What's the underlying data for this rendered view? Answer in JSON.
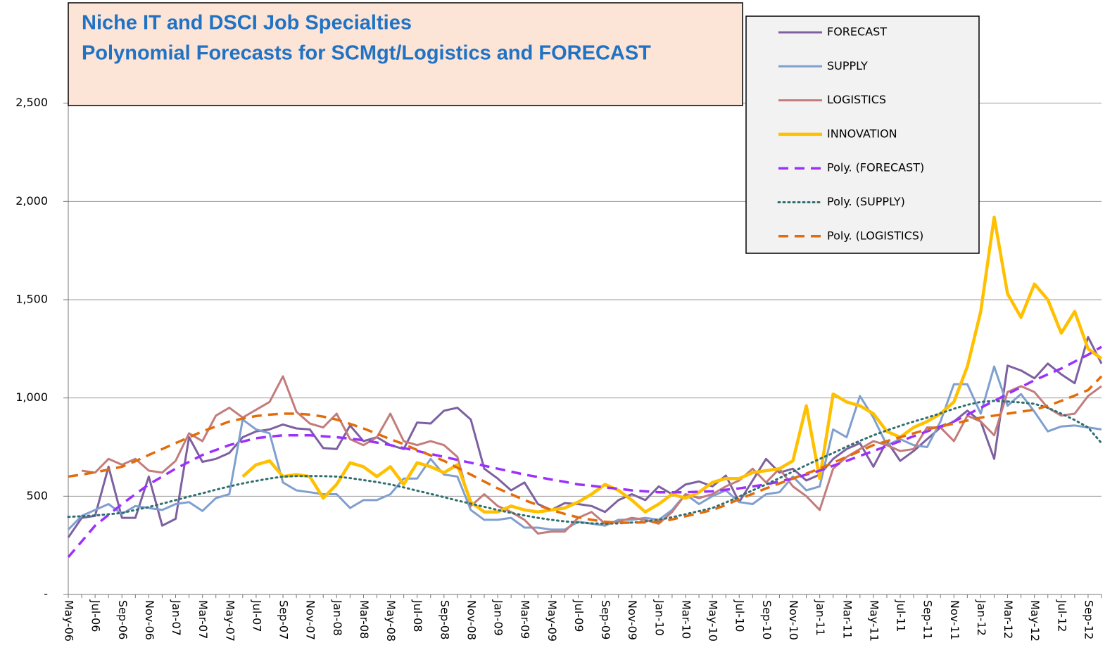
{
  "chart_data": {
    "type": "line",
    "title": "Niche IT and DSCI Job Specialties",
    "subtitle": "Polynomial Forecasts for SCMgt/Logistics and FORECAST",
    "categories": [
      "May-06",
      null,
      "Jul-06",
      null,
      "Sep-06",
      null,
      "Nov-06",
      null,
      "Jan-07",
      null,
      "Mar-07",
      null,
      "May-07",
      null,
      "Jul-07",
      null,
      "Sep-07",
      null,
      "Nov-07",
      null,
      "Jan-08",
      null,
      "Mar-08",
      null,
      "May-08",
      null,
      "Jul-08",
      null,
      "Sep-08",
      null,
      "Nov-08",
      null,
      "Jan-09",
      null,
      "Mar-09",
      null,
      "May-09",
      null,
      "Jul-09",
      null,
      "Sep-09",
      null,
      "Nov-09",
      null,
      "Jan-10",
      null,
      "Mar-10",
      null,
      "May-10",
      null,
      "Jul-10",
      null,
      "Sep-10",
      null,
      "Nov-10",
      null,
      "Jan-11",
      null,
      "Mar-11",
      null,
      "May-11",
      null,
      "Jul-11",
      null,
      "Sep-11",
      null,
      "Nov-11",
      null,
      "Jan-12",
      null,
      "Mar-12",
      null,
      "May-12",
      null,
      "Jul-12",
      null,
      "Sep-12",
      null
    ],
    "ylim": [
      0,
      3000
    ],
    "yticks": [
      {
        "value": 0,
        "label": "-"
      },
      500,
      {
        "value": 1000,
        "label": "1,000"
      },
      {
        "value": 1500,
        "label": "1,500"
      },
      {
        "value": 2000,
        "label": "2,000"
      },
      {
        "value": 2500,
        "label": "2,500"
      }
    ],
    "grid": true,
    "legend": "top-right",
    "series": [
      {
        "name": "FORECAST",
        "color": "#7d60a0",
        "style": "solid",
        "values": [
          290,
          390,
          400,
          650,
          390,
          390,
          600,
          350,
          385,
          800,
          675,
          690,
          720,
          800,
          830,
          840,
          865,
          845,
          840,
          745,
          740,
          860,
          780,
          800,
          760,
          740,
          875,
          870,
          935,
          950,
          890,
          640,
          590,
          530,
          570,
          460,
          430,
          465,
          460,
          450,
          420,
          480,
          510,
          480,
          550,
          510,
          560,
          575,
          550,
          605,
          470,
          580,
          690,
          620,
          640,
          580,
          610,
          690,
          740,
          770,
          650,
          780,
          680,
          730,
          790,
          850,
          880,
          935,
          880,
          690,
          1165,
          1140,
          1100,
          1175,
          1120,
          1075,
          1310,
          1175
        ]
      },
      {
        "name": "SUPPLY",
        "color": "#7f9fcf",
        "style": "solid",
        "values": [
          330,
          400,
          430,
          460,
          410,
          450,
          440,
          430,
          460,
          470,
          425,
          490,
          510,
          890,
          840,
          820,
          570,
          530,
          520,
          510,
          510,
          440,
          480,
          480,
          510,
          590,
          590,
          690,
          610,
          600,
          430,
          380,
          380,
          390,
          340,
          340,
          330,
          330,
          370,
          360,
          350,
          380,
          380,
          390,
          380,
          430,
          510,
          460,
          500,
          530,
          470,
          460,
          510,
          520,
          600,
          530,
          550,
          840,
          800,
          1010,
          900,
          760,
          790,
          760,
          750,
          880,
          1070,
          1070,
          920,
          1160,
          960,
          1020,
          930,
          830,
          855,
          860,
          850,
          840
        ]
      },
      {
        "name": "LOGISTICS",
        "color": "#c27c7c",
        "style": "solid",
        "values": [
          null,
          630,
          620,
          690,
          660,
          690,
          630,
          620,
          680,
          820,
          780,
          910,
          950,
          900,
          940,
          980,
          1110,
          930,
          870,
          850,
          920,
          790,
          760,
          800,
          920,
          780,
          760,
          780,
          760,
          700,
          450,
          510,
          450,
          420,
          380,
          310,
          320,
          320,
          390,
          420,
          360,
          370,
          390,
          380,
          360,
          420,
          510,
          490,
          510,
          550,
          580,
          640,
          570,
          640,
          550,
          500,
          430,
          640,
          700,
          740,
          780,
          760,
          730,
          740,
          850,
          850,
          780,
          910,
          880,
          810,
          1030,
          1060,
          1030,
          950,
          910,
          920,
          1010,
          1060
        ]
      },
      {
        "name": "INNOVATION",
        "color": "#ffc000",
        "style": "thick",
        "values": [
          null,
          null,
          null,
          null,
          null,
          null,
          null,
          null,
          null,
          null,
          null,
          null,
          null,
          600,
          660,
          680,
          600,
          610,
          600,
          490,
          560,
          670,
          650,
          600,
          650,
          560,
          670,
          650,
          620,
          660,
          470,
          420,
          420,
          450,
          430,
          420,
          430,
          440,
          470,
          510,
          560,
          530,
          480,
          420,
          460,
          510,
          490,
          520,
          570,
          590,
          590,
          620,
          630,
          640,
          680,
          960,
          590,
          1020,
          980,
          960,
          920,
          830,
          800,
          850,
          880,
          920,
          980,
          1160,
          1440,
          1920,
          1530,
          1410,
          1580,
          1500,
          1330,
          1440,
          1250,
          1200
        ]
      },
      {
        "name": "Poly. (FORECAST)",
        "color": "#9b30ff",
        "style": "dashed",
        "values": [
          190,
          270,
          350,
          405,
          460,
          510,
          560,
          600,
          640,
          675,
          710,
          735,
          760,
          778,
          795,
          803,
          810,
          810,
          810,
          805,
          800,
          793,
          785,
          773,
          760,
          745,
          730,
          715,
          700,
          685,
          670,
          655,
          640,
          625,
          610,
          598,
          585,
          573,
          560,
          553,
          545,
          538,
          530,
          525,
          520,
          520,
          520,
          523,
          525,
          533,
          540,
          550,
          560,
          575,
          590,
          610,
          630,
          655,
          680,
          705,
          730,
          755,
          780,
          805,
          830,
          855,
          880,
          915,
          950,
          985,
          1020,
          1055,
          1090,
          1120,
          1150,
          1185,
          1220,
          1260
        ]
      },
      {
        "name": "Poly. (SUPPLY)",
        "color": "#2f6f6f",
        "style": "dotted",
        "values": [
          395,
          398,
          402,
          408,
          415,
          430,
          445,
          462,
          480,
          498,
          515,
          533,
          550,
          565,
          578,
          590,
          600,
          602,
          603,
          602,
          600,
          592,
          582,
          572,
          560,
          545,
          528,
          512,
          495,
          478,
          462,
          446,
          430,
          415,
          402,
          390,
          380,
          372,
          366,
          362,
          360,
          362,
          366,
          372,
          380,
          393,
          408,
          424,
          440,
          468,
          498,
          530,
          560,
          592,
          625,
          658,
          690,
          720,
          752,
          782,
          810,
          835,
          858,
          880,
          900,
          922,
          945,
          965,
          980,
          985,
          982,
          977,
          970,
          950,
          920,
          888,
          850,
          770
        ]
      },
      {
        "name": "Poly. (LOGISTICS)",
        "color": "#e36c0a",
        "style": "dashed",
        "values": [
          600,
          610,
          622,
          635,
          650,
          678,
          710,
          740,
          770,
          800,
          830,
          855,
          880,
          895,
          908,
          915,
          920,
          920,
          915,
          905,
          890,
          868,
          845,
          818,
          790,
          765,
          735,
          708,
          680,
          645,
          610,
          575,
          540,
          510,
          480,
          455,
          430,
          410,
          392,
          380,
          370,
          365,
          365,
          367,
          370,
          382,
          398,
          413,
          430,
          455,
          485,
          512,
          540,
          565,
          590,
          615,
          640,
          670,
          700,
          730,
          760,
          780,
          800,
          820,
          840,
          855,
          870,
          885,
          900,
          910,
          920,
          930,
          940,
          960,
          985,
          1012,
          1040,
          1110
        ]
      }
    ]
  }
}
